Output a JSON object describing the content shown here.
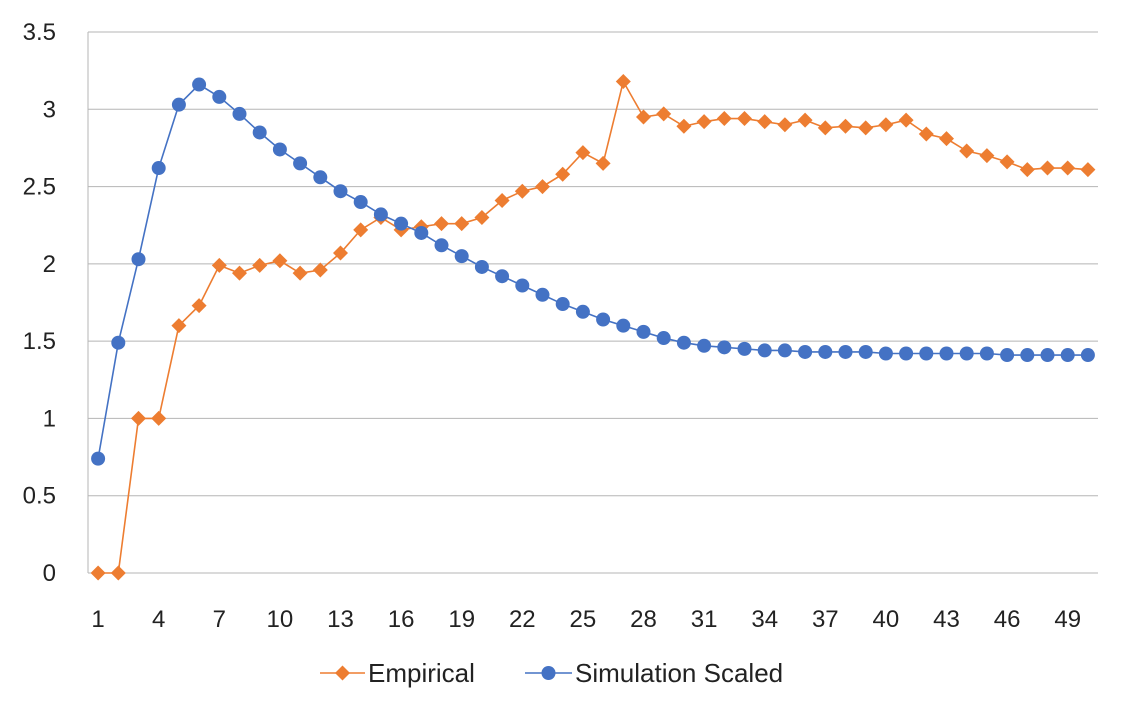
{
  "chart_data": {
    "type": "line",
    "title": "",
    "xlabel": "",
    "ylabel": "",
    "x": [
      1,
      2,
      3,
      4,
      5,
      6,
      7,
      8,
      9,
      10,
      11,
      12,
      13,
      14,
      15,
      16,
      17,
      18,
      19,
      20,
      21,
      22,
      23,
      24,
      25,
      26,
      27,
      28,
      29,
      30,
      31,
      32,
      33,
      34,
      35,
      36,
      37,
      38,
      39,
      40,
      41,
      42,
      43,
      44,
      45,
      46,
      47,
      48,
      49,
      50
    ],
    "x_tick_labels": [
      "1",
      "4",
      "7",
      "10",
      "13",
      "16",
      "19",
      "22",
      "25",
      "28",
      "31",
      "34",
      "37",
      "40",
      "43",
      "46",
      "49"
    ],
    "y_tick_labels": [
      "0",
      "0.5",
      "1",
      "1.5",
      "2",
      "2.5",
      "3",
      "3.5"
    ],
    "ylim": [
      0,
      3.5
    ],
    "grid": true,
    "legend_position": "bottom",
    "series": [
      {
        "name": "Empirical",
        "color": "#ED7D31",
        "marker": "diamond",
        "values": [
          0,
          0,
          1,
          1,
          1.6,
          1.73,
          1.99,
          1.94,
          1.99,
          2.02,
          1.94,
          1.96,
          2.07,
          2.22,
          2.3,
          2.22,
          2.24,
          2.26,
          2.26,
          2.3,
          2.41,
          2.47,
          2.5,
          2.58,
          2.72,
          2.65,
          3.18,
          2.95,
          2.97,
          2.89,
          2.92,
          2.94,
          2.94,
          2.92,
          2.9,
          2.93,
          2.88,
          2.89,
          2.88,
          2.9,
          2.93,
          2.84,
          2.81,
          2.73,
          2.7,
          2.66,
          2.61,
          2.62,
          2.62,
          2.61
        ]
      },
      {
        "name": "Simulation Scaled",
        "color": "#4472C4",
        "marker": "circle",
        "values": [
          0.74,
          1.49,
          2.03,
          2.62,
          3.03,
          3.16,
          3.08,
          2.97,
          2.85,
          2.74,
          2.65,
          2.56,
          2.47,
          2.4,
          2.32,
          2.26,
          2.2,
          2.12,
          2.05,
          1.98,
          1.92,
          1.86,
          1.8,
          1.74,
          1.69,
          1.64,
          1.6,
          1.56,
          1.52,
          1.49,
          1.47,
          1.46,
          1.45,
          1.44,
          1.44,
          1.43,
          1.43,
          1.43,
          1.43,
          1.42,
          1.42,
          1.42,
          1.42,
          1.42,
          1.42,
          1.41,
          1.41,
          1.41,
          1.41,
          1.41
        ]
      }
    ]
  }
}
